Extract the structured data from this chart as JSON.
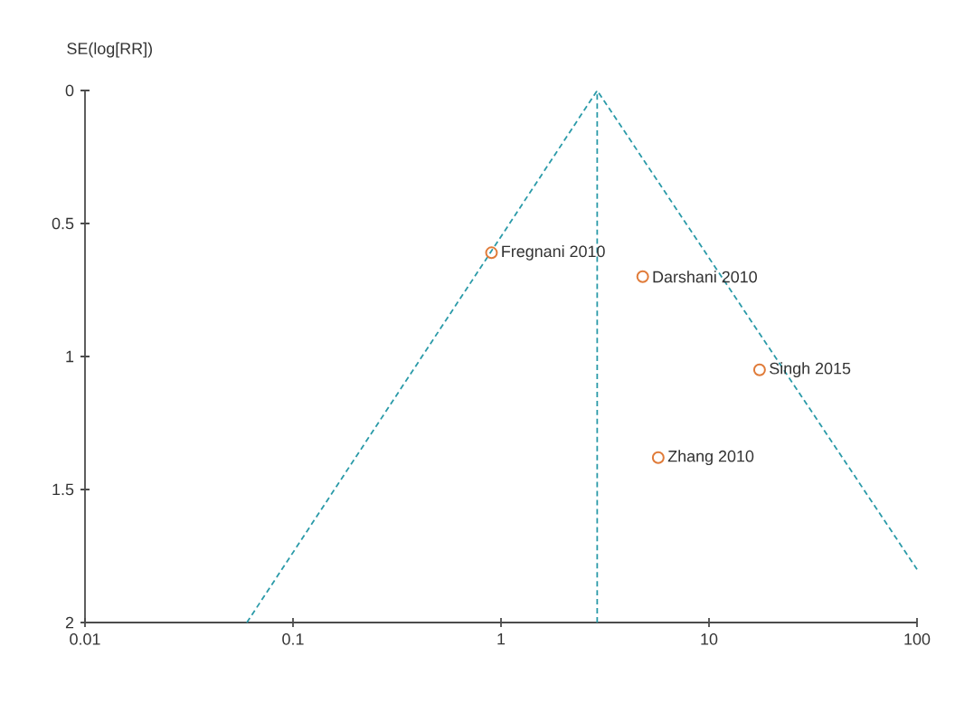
{
  "chart_data": {
    "type": "scatter",
    "ylabel": "SE(log[RR])",
    "log": "x",
    "xlim": [
      0.01,
      100
    ],
    "ylim": [
      2,
      0
    ],
    "xticks": [
      0.01,
      0.1,
      1,
      10,
      100
    ],
    "yticks": [
      0,
      0.5,
      1,
      1.5,
      2
    ],
    "series": [
      {
        "color": "#e07b39",
        "marker": "circle",
        "x": [
          0.9,
          4.8,
          17.5,
          5.7
        ],
        "values": [
          0.61,
          0.7,
          1.05,
          1.38
        ]
      },
      {
        "type": "line",
        "color": "#2a9aa8",
        "line_style": "dashed",
        "marker": "none",
        "x": [
          0.06,
          2.9,
          100
        ],
        "values": [
          2,
          0,
          1.8
        ]
      }
    ],
    "ref_lines": [
      {
        "axis": "x",
        "value": 2.9,
        "color": "#2a9aa8",
        "line_style": "dashed"
      }
    ],
    "annotations": [
      {
        "text": "Fregnani 2010",
        "x": 0.9,
        "y": 0.61
      },
      {
        "text": "Darshani 2010",
        "x": 4.8,
        "y": 0.7
      },
      {
        "text": "Singh 2015",
        "x": 17.5,
        "y": 1.05
      },
      {
        "text": "Zhang 2010",
        "x": 5.7,
        "y": 1.38
      }
    ]
  }
}
